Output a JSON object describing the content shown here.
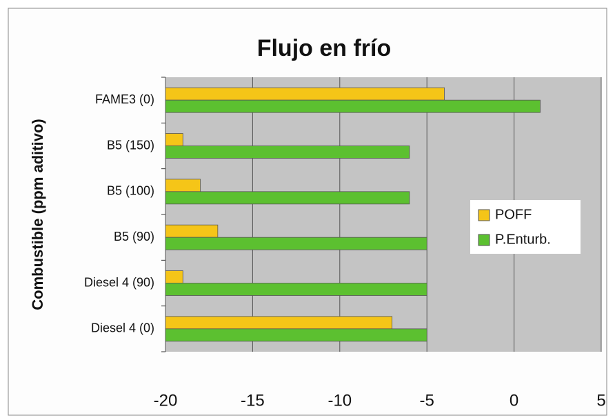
{
  "chart_data": {
    "type": "hbar",
    "title": "Flujo en frío",
    "ylabel": "Combustible (ppm aditivo)",
    "categories": [
      "FAME3 (0)",
      "B5 (150)",
      "B5 (100)",
      "B5 (90)",
      "Diesel 4 (90)",
      "Diesel 4 (0)"
    ],
    "series": [
      {
        "name": "POFF",
        "color": "#f5c518",
        "values": [
          -4,
          -19,
          -18,
          -17,
          -19,
          -7
        ]
      },
      {
        "name": "P.Enturb.",
        "color": "#5cc030",
        "values": [
          1.5,
          -6,
          -6,
          -5,
          -5,
          -5
        ]
      }
    ],
    "xlim": [
      -20,
      5
    ],
    "xticks": [
      -20,
      -15,
      -10,
      -5,
      0,
      5
    ],
    "grid": true,
    "legend": "right"
  }
}
